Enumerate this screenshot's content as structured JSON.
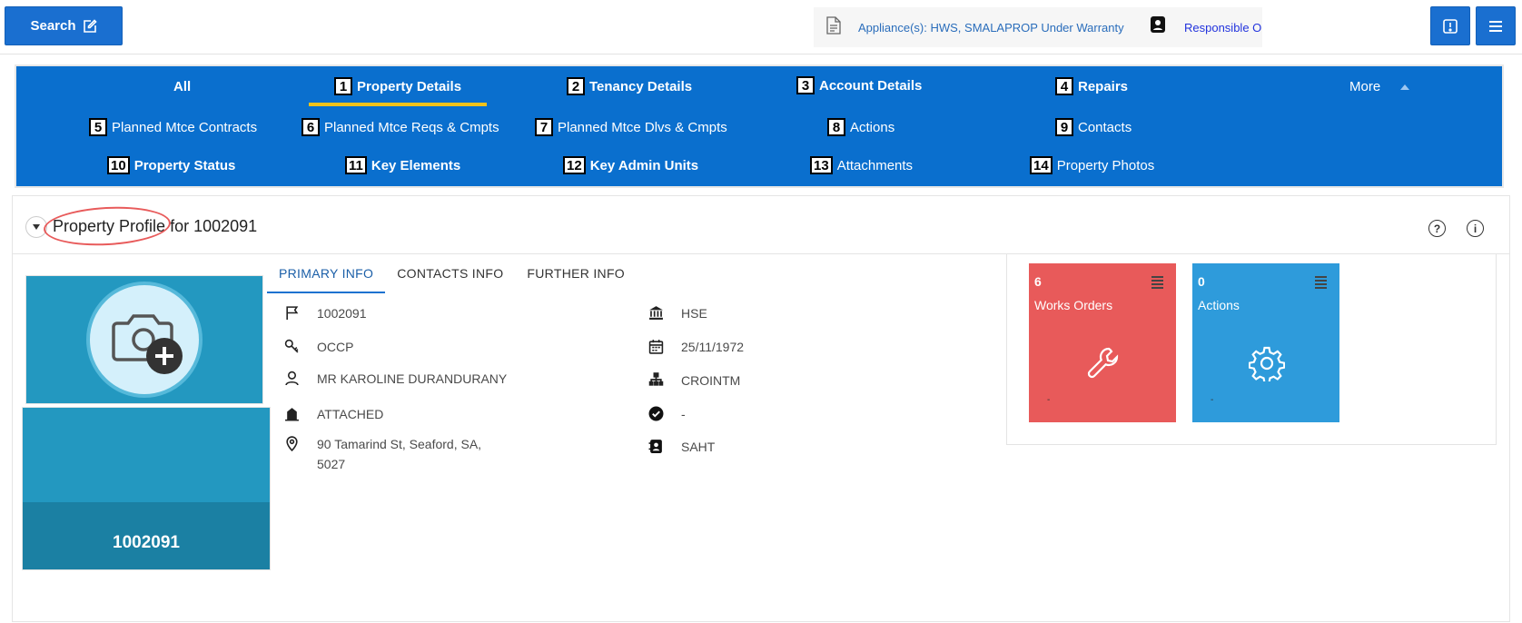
{
  "topbar": {
    "search_label": "Search",
    "appliances_text": "Appliance(s): HWS, SMALAPROP Under Warranty",
    "responsible_text": "Responsible O"
  },
  "tabs": {
    "all": "All",
    "more": "More",
    "items": [
      {
        "num": "1",
        "label": "Property Details",
        "bold": true,
        "active": true
      },
      {
        "num": "2",
        "label": "Tenancy Details",
        "bold": true
      },
      {
        "num": "3",
        "label": "Account Details",
        "bold": true
      },
      {
        "num": "4",
        "label": "Repairs",
        "bold": true
      },
      {
        "num": "5",
        "label": "Planned Mtce Contracts"
      },
      {
        "num": "6",
        "label": "Planned Mtce Reqs & Cmpts"
      },
      {
        "num": "7",
        "label": "Planned Mtce Dlvs & Cmpts"
      },
      {
        "num": "8",
        "label": "Actions"
      },
      {
        "num": "9",
        "label": "Contacts"
      },
      {
        "num": "10",
        "label": "Property Status",
        "bold": true
      },
      {
        "num": "11",
        "label": "Key Elements",
        "bold": true
      },
      {
        "num": "12",
        "label": "Key Admin Units",
        "bold": true
      },
      {
        "num": "13",
        "label": "Attachments"
      },
      {
        "num": "14",
        "label": "Property Photos"
      }
    ]
  },
  "card": {
    "title_part1": "Property Profile",
    "title_part2": " for 1002091",
    "photo_caption": "1002091",
    "subtabs": [
      "PRIMARY INFO",
      "CONTACTS INFO",
      "FURTHER INFO"
    ],
    "fields_left": {
      "property_id": "1002091",
      "occupancy": "OCCP",
      "tenant": "MR KAROLINE DURANDURANY",
      "type": "ATTACHED",
      "address_line1": "90 Tamarind St, Seaford, SA,",
      "address_line2": "5027"
    },
    "fields_right": {
      "owner": "HSE",
      "date": "25/11/1972",
      "org": "CROINTM",
      "status": "-",
      "contact": "SAHT"
    },
    "widgets": {
      "works_count": "6",
      "works_label": "Works Orders",
      "works_color": "#e85a5a",
      "works_dot": "-",
      "actions_count": "0",
      "actions_label": "Actions",
      "actions_color": "#2e9bdb",
      "actions_dot": "-"
    }
  }
}
